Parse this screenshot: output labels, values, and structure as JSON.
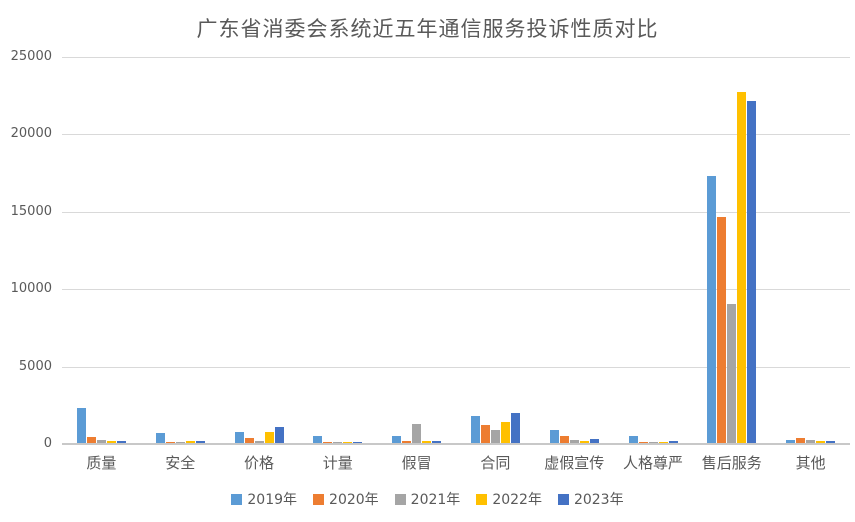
{
  "chart_data": {
    "type": "bar",
    "title": "广东省消委会系统近五年通信服务投诉性质对比",
    "categories": [
      "质量",
      "安全",
      "价格",
      "计量",
      "假冒",
      "合同",
      "虚假宣传",
      "人格尊严",
      "售后服务",
      "其他"
    ],
    "series": [
      {
        "name": "2019年",
        "color": "#5B9BD5",
        "values": [
          2250,
          620,
          710,
          420,
          470,
          1730,
          870,
          460,
          17250,
          215
        ]
      },
      {
        "name": "2020年",
        "color": "#ED7D31",
        "values": [
          400,
          80,
          320,
          30,
          100,
          1180,
          470,
          90,
          14600,
          340
        ]
      },
      {
        "name": "2021年",
        "color": "#A5A5A5",
        "values": [
          220,
          90,
          150,
          70,
          1230,
          860,
          220,
          90,
          8950,
          220
        ]
      },
      {
        "name": "2022年",
        "color": "#FFC000",
        "values": [
          100,
          100,
          700,
          80,
          100,
          1340,
          120,
          90,
          22700,
          100
        ]
      },
      {
        "name": "2023年",
        "color": "#4472C4",
        "values": [
          150,
          110,
          1040,
          90,
          130,
          1920,
          270,
          100,
          22100,
          130
        ]
      }
    ],
    "ylim": [
      0,
      25000
    ],
    "yticks": [
      0,
      5000,
      10000,
      15000,
      20000,
      25000
    ],
    "ytick_labels": [
      "0",
      "5000",
      "10000",
      "15000",
      "20000",
      "25000"
    ],
    "grid": true,
    "legend_position": "bottom",
    "xlabel": "",
    "ylabel": ""
  },
  "colors": {
    "text": "#595959",
    "gridline": "#D9D9D9",
    "axis_line": "#C8C8C8",
    "background": "#FFFFFF"
  }
}
